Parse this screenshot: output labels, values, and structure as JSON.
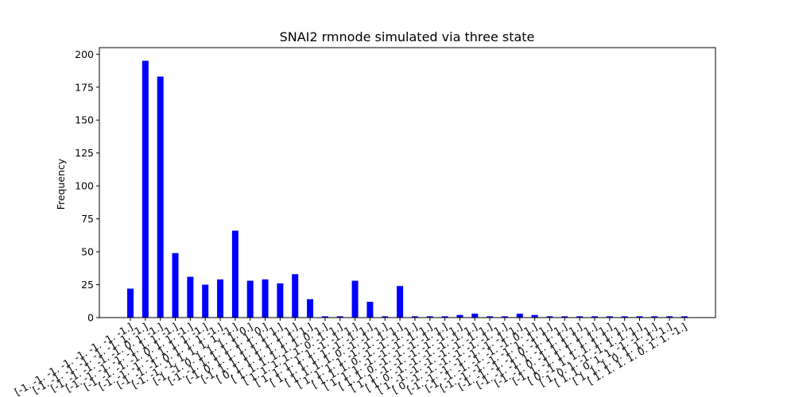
{
  "chart_data": {
    "type": "bar",
    "title": "SNAI2 rmnode simulated via three state",
    "xlabel": "",
    "ylabel": "Frequency",
    "ylim": [
      0,
      205
    ],
    "yticks": [
      0,
      25,
      50,
      75,
      100,
      125,
      150,
      175,
      200
    ],
    "bar_color": "#0000ff",
    "grid": false,
    "legend": "none",
    "categories": [
      "[-1. -1. -1. -1. -1. -1. -1. -1.]",
      "[-1. -1. -1. -1. -1. -1.  1. -1.]",
      "[-1. -1. -1. -1. -1.  0.  1. -1.]",
      "[-1. -1. -1. -1. -1.  1.  1. -1.]",
      "[-1. -1. -1. -1.  0.  1.  1. -1.]",
      "[-1. -1. -1. -1.  1.  1.  1. -1.]",
      "[-1. -1. -1.  0.  1.  1.  1. -1.]",
      "[-1. -1. -1.  1.  1.  1.  1. -1.]",
      "[-1. -1.  0.  1.  1.  1.  1.  0.]",
      "[-1. -1.  1.  1.  1.  1.  1.  0.]",
      "[-1.  0.  1.  1.  1.  1.  1.  1.]",
      "[-1.  1.  1.  1.  1.  1.  1.  1.]",
      "[ 0.  1.  1.  1.  1.  1.  1.  1.]",
      "[ 1.  1.  1.  1.  1.  1.  0.  1.]",
      "[ 1.  1.  1.  1.  1.  0. -1.  1.]",
      "[ 1.  1.  1.  1.  1. -1. -1.  1.]",
      "[ 1.  1.  1.  1.  1. -1. -1.  1.]",
      "[ 1.  1.  1.  1.  0. -1. -1.  1.]",
      "[ 1.  1.  1.  1. -1. -1. -1.  1.]",
      "[ 1.  1.  1.  0. -1. -1. -1.  1.]",
      "[ 1.  1.  1. -1. -1. -1. -1.  1.]",
      "[ 1.  1.  0. -1. -1. -1. -1.  1.]",
      "[ 1.  1. -1. -1. -1. -1. -1.  1.]",
      "[ 1.  0. -1. -1. -1. -1. -1.  1.]",
      "[ 1. -1. -1. -1. -1. -1. -1.  1.]",
      "[ 0. -1. -1. -1. -1. -1. -1.  1.]",
      "[-1. -1. -1. -1. -1. -1. -1.  1.]",
      "[-1. -1. -1. -1. -1. -1.  0.  1.]",
      "[-1. -1. -1. -1. -1.  1. -1.  1.]",
      "[-1. -1. -1. -1.  0. -1.  1.  1.]",
      "[-1. -1. -1.  1. -1.  1.  1.  1.]",
      "[-1. -1.  0. -1.  1.  1.  1.  1.]",
      "[-1.  1. -1.  1.  1.  1.  1.  1.]",
      "[ 0. -1.  1.  1.  1.  1.  1.  1.]",
      "[ 1.  0.  1. -1. -1.  1.  1.  1.]",
      "[ 1.  1.  0.  1.  1. -1. -1.  1.]",
      "[ 1.  1.  1.  0.  1.  1. -1.  1.]",
      "[ 1.  1.  1.  1.  0.  1.  1. -1.]"
    ],
    "values": [
      22,
      195,
      183,
      49,
      31,
      25,
      29,
      66,
      28,
      29,
      26,
      33,
      14,
      1,
      1,
      28,
      12,
      1,
      24,
      1,
      1,
      1,
      2,
      3,
      1,
      1,
      3,
      2,
      1,
      1,
      1,
      1,
      1,
      1,
      1,
      1,
      1,
      1
    ]
  }
}
